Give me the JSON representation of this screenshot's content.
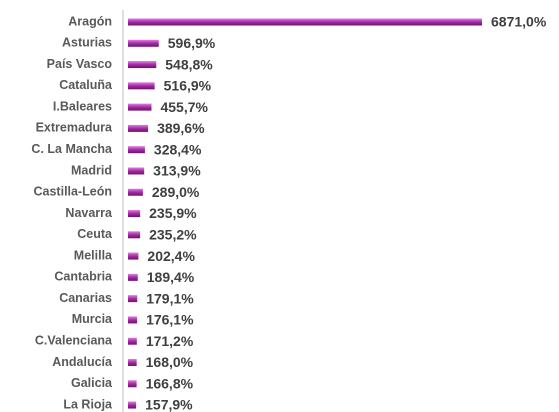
{
  "chart_data": {
    "type": "bar",
    "orientation": "horizontal",
    "color": "#a32ca3",
    "categories": [
      "Aragón",
      "Asturias",
      "País Vasco",
      "Cataluña",
      "I.Baleares",
      "Extremadura",
      "C. La Mancha",
      "Madrid",
      "Castilla-León",
      "Navarra",
      "Ceuta",
      "Melilla",
      "Cantabria",
      "Canarias",
      "Murcia",
      "C.Valenciana",
      "Andalucía",
      "Galicia",
      "La Rioja"
    ],
    "values": [
      6871.0,
      596.9,
      548.8,
      516.9,
      455.7,
      389.6,
      328.4,
      313.9,
      289.0,
      235.9,
      235.2,
      202.4,
      189.4,
      179.1,
      176.1,
      171.2,
      168.0,
      166.8,
      157.9
    ],
    "value_labels": [
      "6871,0%",
      "596,9%",
      "548,8%",
      "516,9%",
      "455,7%",
      "389,6%",
      "328,4%",
      "313,9%",
      "289,0%",
      "235,9%",
      "235,2%",
      "202,4%",
      "189,4%",
      "179,1%",
      "176,1%",
      "171,2%",
      "168,0%",
      "166,8%",
      "157,9%"
    ]
  }
}
